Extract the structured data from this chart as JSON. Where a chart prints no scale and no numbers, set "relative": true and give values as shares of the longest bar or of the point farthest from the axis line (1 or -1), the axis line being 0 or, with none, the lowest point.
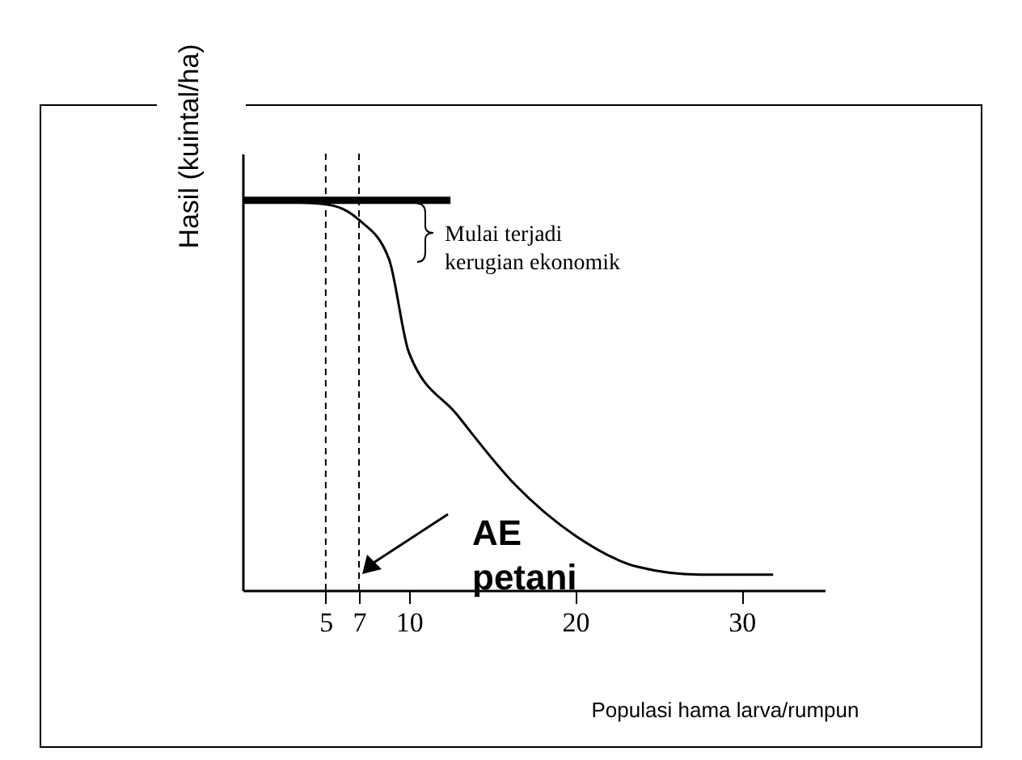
{
  "chart_data": {
    "type": "line",
    "relative": true,
    "xlabel": "Populasi hama larva/rumpun",
    "ylabel": "Hasil (kuintal/ha)",
    "xlim": [
      0,
      35
    ],
    "xticks": [
      5,
      7,
      10,
      20,
      30
    ],
    "series": [
      {
        "color": "#000000",
        "x": [
          0,
          5,
          7,
          8.8,
          10,
          12.9,
          16.4,
          20,
          23.75,
          27.5,
          31.9
        ],
        "values": [
          1,
          0.99,
          0.95,
          0.85,
          0.61,
          0.45,
          0.27,
          0.14,
          0.06,
          0.04,
          0.04
        ]
      },
      {
        "color": "#000000",
        "x": [
          0,
          12.5
        ],
        "values": [
          1,
          1
        ]
      }
    ],
    "ref_lines": [
      {
        "axis": "x",
        "value": 5,
        "color": "#000000",
        "line_style": "dashed"
      },
      {
        "axis": "x",
        "value": 7,
        "color": "#000000",
        "line_style": "dashed"
      }
    ],
    "annotations": [
      "Mulai terjadi\nkerugian ekonomik",
      "AE\npetani"
    ],
    "marker": "none",
    "line_style": "solid"
  }
}
